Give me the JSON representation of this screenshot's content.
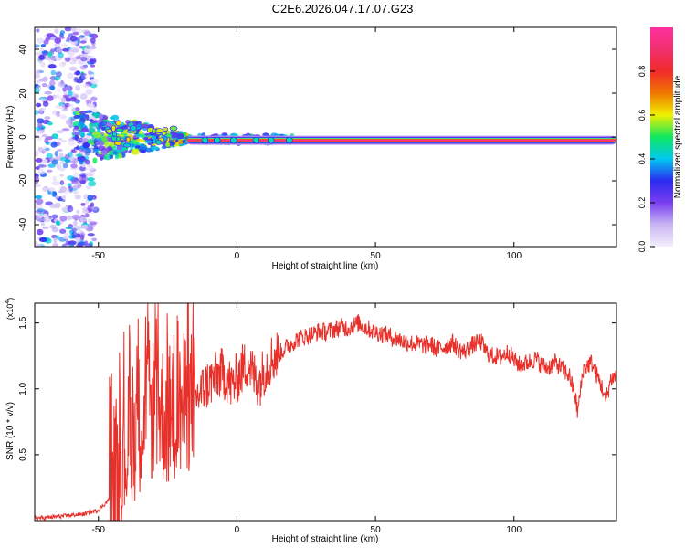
{
  "title": "C2E6.2026.047.17.07.G23",
  "colors": {
    "snr_line": "#e8302a",
    "ridge": "#e8302a",
    "frame": "#000000",
    "colormap": [
      "#f4eefc",
      "#c9b6f4",
      "#7a3ef0",
      "#2b2bf0",
      "#00c8f0",
      "#10e860",
      "#f0f000",
      "#f07800",
      "#f02a2a",
      "#f0306e",
      "#ff2fa0"
    ]
  },
  "chart_data": [
    {
      "type": "heatmap",
      "title": "C2E6.2026.047.17.07.G23",
      "xlabel": "Height of straight line (km)",
      "ylabel": "Frequency (Hz)",
      "xlim": [
        -73,
        137
      ],
      "ylim": [
        -50,
        50
      ],
      "xticks": [
        -50,
        0,
        50,
        100
      ],
      "yticks": [
        -40,
        -20,
        0,
        20,
        40
      ],
      "colorbar": {
        "label": "Normalized spectral amplitude",
        "range": [
          0,
          1
        ],
        "ticks": [
          "0.0",
          "0.2",
          "0.4",
          "0.6",
          "0.8"
        ],
        "tick_values": [
          0,
          0.2,
          0.4,
          0.6,
          0.8
        ]
      },
      "ridge": {
        "frequency_hz": -1.5,
        "x_start": -18,
        "x_end": 137,
        "amplitude": 1.0
      },
      "regions": [
        {
          "name": "scatter",
          "x_range": [
            -73,
            -51
          ],
          "y_range": [
            -50,
            50
          ],
          "amplitude": 0.2
        },
        {
          "name": "wedge",
          "x_range": [
            -58,
            -18
          ],
          "y_range": [
            -14,
            12
          ],
          "amplitude": 0.45
        },
        {
          "name": "tail",
          "x_range": [
            -18,
            20
          ],
          "y_range": [
            -3,
            1
          ],
          "amplitude": 0.35
        }
      ]
    },
    {
      "type": "line",
      "xlabel": "Height of straight line (km)",
      "ylabel": "SNR (10 * v/v)",
      "exponent_label": "(x10",
      "exponent_power": "4",
      "exponent_close": ")",
      "xlim": [
        -73,
        137
      ],
      "ylim": [
        0,
        1.65
      ],
      "xticks": [
        -50,
        0,
        50,
        100
      ],
      "yticks": [
        0.5,
        1.0,
        1.5
      ],
      "ytick_labels": [
        "0.5",
        "1.0",
        "1.5"
      ],
      "series": [
        {
          "name": "SNR",
          "x": [
            -73,
            -70,
            -65,
            -60,
            -55,
            -50,
            -47,
            -45,
            -44,
            -42,
            -40,
            -38,
            -36,
            -34,
            -32,
            -30,
            -28,
            -26,
            -24,
            -22,
            -20,
            -18,
            -16,
            -14,
            -12,
            -10,
            -8,
            -6,
            -4,
            -2,
            0,
            2,
            4,
            6,
            8,
            10,
            12,
            14,
            16,
            18,
            20,
            22,
            25,
            28,
            30,
            32,
            35,
            38,
            40,
            42,
            44,
            46,
            48,
            50,
            52,
            55,
            58,
            60,
            62,
            65,
            68,
            70,
            72,
            75,
            78,
            80,
            82,
            85,
            88,
            90,
            92,
            95,
            98,
            100,
            102,
            105,
            108,
            110,
            112,
            115,
            118,
            120,
            122,
            123,
            125,
            128,
            130,
            132,
            133,
            135,
            137
          ],
          "values": [
            0.02,
            0.02,
            0.03,
            0.04,
            0.05,
            0.08,
            0.14,
            0.2,
            0.3,
            0.42,
            0.55,
            0.65,
            0.72,
            0.78,
            0.82,
            0.86,
            0.84,
            0.8,
            0.76,
            0.78,
            0.86,
            0.9,
            0.92,
            0.95,
            1.0,
            1.05,
            1.08,
            1.12,
            1.1,
            1.02,
            1.08,
            1.15,
            1.2,
            1.1,
            1.05,
            1.15,
            1.22,
            1.25,
            1.28,
            1.32,
            1.35,
            1.38,
            1.4,
            1.42,
            1.44,
            1.43,
            1.45,
            1.47,
            1.46,
            1.48,
            1.5,
            1.47,
            1.45,
            1.43,
            1.42,
            1.4,
            1.38,
            1.36,
            1.35,
            1.34,
            1.33,
            1.34,
            1.3,
            1.32,
            1.35,
            1.3,
            1.28,
            1.33,
            1.36,
            1.28,
            1.25,
            1.24,
            1.28,
            1.22,
            1.18,
            1.2,
            1.23,
            1.18,
            1.16,
            1.2,
            1.14,
            1.1,
            0.95,
            0.82,
            1.15,
            1.2,
            1.1,
            1.0,
            0.9,
            1.08,
            1.1
          ]
        }
      ]
    }
  ]
}
